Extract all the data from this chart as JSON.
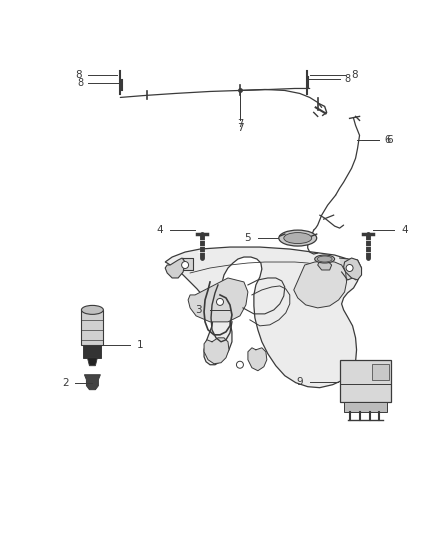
{
  "background_color": "#ffffff",
  "fig_width": 4.38,
  "fig_height": 5.33,
  "dpi": 100,
  "line_color": "#3a3a3a",
  "fill_light": "#e8e8e8",
  "fill_mid": "#cccccc",
  "fill_dark": "#555555"
}
